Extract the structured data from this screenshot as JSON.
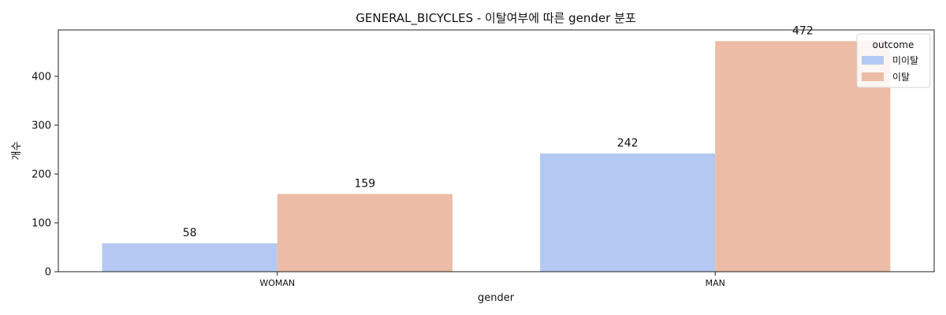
{
  "chart_data": {
    "type": "bar",
    "title": "GENERAL_BICYCLES - 이탈여부에 따른 gender 분포",
    "xlabel": "gender",
    "ylabel": "개수",
    "categories": [
      "WOMAN",
      "MAN"
    ],
    "series": [
      {
        "name": "미이탈",
        "values": [
          58,
          242
        ],
        "color": "#b3c9f2"
      },
      {
        "name": "이탈",
        "values": [
          159,
          472
        ],
        "color": "#ecbca6"
      }
    ],
    "ylim": [
      0,
      495
    ],
    "yticks": [
      "0",
      "100",
      "200",
      "300",
      "400"
    ],
    "grid": false,
    "legend": {
      "title": "outcome",
      "placement": "top-right"
    }
  }
}
